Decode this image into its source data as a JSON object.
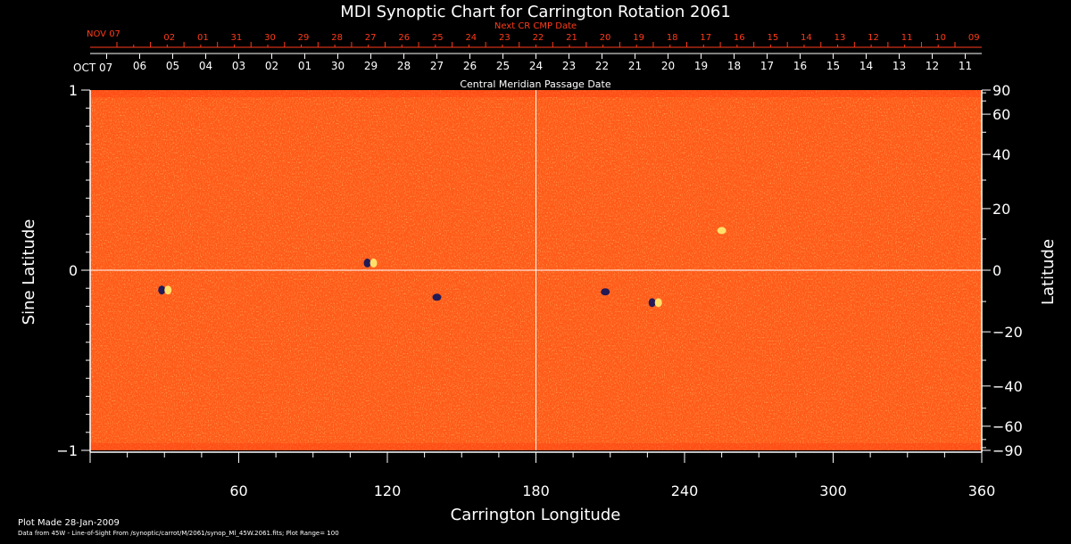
{
  "chart_data": {
    "type": "heatmap",
    "title": "MDI Synoptic Chart for Carrington Rotation 2061",
    "xlabel": "Carrington Longitude",
    "ylabel_left": "Sine Latitude",
    "ylabel_right": "Latitude",
    "top_axis_label": "Central Meridian Passage Date",
    "next_cr_label": "Next CR CMP Date",
    "xlim": [
      0,
      360
    ],
    "ylim": [
      -1,
      1
    ],
    "x_ticks": [
      60,
      120,
      180,
      240,
      300,
      360
    ],
    "y_ticks_left": [
      -1,
      0,
      1
    ],
    "y_ticks_right": [
      -90,
      -60,
      -40,
      -20,
      0,
      20,
      40,
      60,
      90
    ],
    "crosshair": {
      "longitude": 180,
      "sine_latitude": 0
    },
    "cmp_month_start": "OCT 07",
    "cmp_dates": [
      "06",
      "05",
      "04",
      "03",
      "02",
      "01",
      "30",
      "29",
      "28",
      "27",
      "26",
      "25",
      "24",
      "23",
      "22",
      "21",
      "20",
      "19",
      "18",
      "17",
      "16",
      "15",
      "14",
      "13",
      "12",
      "11"
    ],
    "next_cr_month_start": "NOV 07",
    "next_cr_dates": [
      "02",
      "01",
      "31",
      "30",
      "29",
      "28",
      "27",
      "26",
      "25",
      "24",
      "23",
      "22",
      "21",
      "20",
      "19",
      "18",
      "17",
      "16",
      "15",
      "14",
      "13",
      "12",
      "11",
      "10",
      "09"
    ],
    "features": [
      {
        "longitude": 113,
        "sine_latitude": 0.04,
        "polarity": "mixed"
      },
      {
        "longitude": 30,
        "sine_latitude": -0.11,
        "polarity": "mixed"
      },
      {
        "longitude": 140,
        "sine_latitude": -0.15,
        "polarity": "negative"
      },
      {
        "longitude": 208,
        "sine_latitude": -0.12,
        "polarity": "negative"
      },
      {
        "longitude": 228,
        "sine_latitude": -0.18,
        "polarity": "mixed"
      },
      {
        "longitude": 255,
        "sine_latitude": 0.22,
        "polarity": "positive"
      }
    ],
    "colors": {
      "background": "#ff5a18",
      "positive": "#ffe16a",
      "negative": "#241a55",
      "axis": "#ffffff",
      "accent": "#ff3b1a"
    }
  },
  "footer": {
    "plot_made": "Plot Made 28-Jan-2009",
    "data_note": "Data from 45W - Line-of-Sight From /synoptic/carrot/M/2061/synop_Ml_45W.2061.fits; Plot Range= 100"
  }
}
